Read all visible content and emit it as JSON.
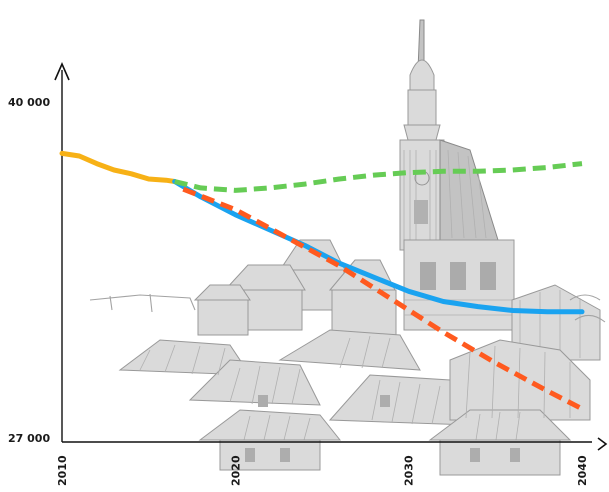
{
  "chart_data": {
    "type": "line",
    "xlim": [
      2010,
      2040
    ],
    "ylim": [
      27000,
      40000
    ],
    "x_ticks": [
      2010,
      2020,
      2030,
      2040
    ],
    "y_ticks": [
      27000,
      40000
    ],
    "y_tick_labels": [
      "27 000",
      "40 000"
    ],
    "series": [
      {
        "color": "#f7b116",
        "style": "solid",
        "x": [
          2010,
          2011,
          2012,
          2013,
          2014,
          2015,
          2016,
          2016.5
        ],
        "y": [
          38300,
          38200,
          37900,
          37650,
          37500,
          37300,
          37250,
          37200
        ]
      },
      {
        "color": "#1aa3f0",
        "style": "solid",
        "x": [
          2016.5,
          2018,
          2020,
          2022,
          2024,
          2026,
          2028,
          2030,
          2032,
          2034,
          2036,
          2038,
          2040
        ],
        "y": [
          37200,
          36600,
          35900,
          35300,
          34700,
          34000,
          33450,
          32900,
          32500,
          32300,
          32150,
          32100,
          32100
        ]
      },
      {
        "color": "#66cc55",
        "style": "dashed",
        "x": [
          2016.5,
          2018,
          2020,
          2022,
          2024,
          2026,
          2028,
          2030,
          2032,
          2034,
          2036,
          2038,
          2040
        ],
        "y": [
          37200,
          36950,
          36850,
          36950,
          37100,
          37300,
          37450,
          37550,
          37600,
          37600,
          37650,
          37750,
          37900
        ]
      },
      {
        "color": "#ff5a1f",
        "style": "dashed",
        "x": [
          2017,
          2020,
          2023,
          2026,
          2029,
          2032,
          2035,
          2038,
          2040
        ],
        "y": [
          36900,
          36100,
          35000,
          33900,
          32600,
          31300,
          30100,
          29000,
          28300
        ]
      }
    ]
  }
}
